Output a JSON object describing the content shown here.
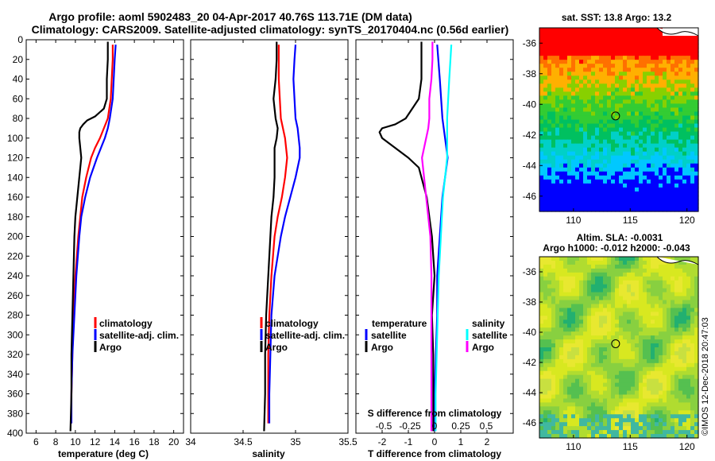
{
  "header": {
    "line1": "Argo profile: aoml 5902483_20 04-Apr-2017 40.76S 113.71E (DM data)",
    "line2": "Climatology: CARS2009. Satellite-adjusted climatology: synTS_20170404.nc (0.56d earlier)"
  },
  "chart_data": [
    {
      "id": "temperature",
      "type": "line",
      "xlabel": "temperature (deg C)",
      "ylabel": "",
      "xlim": [
        5,
        21
      ],
      "ylim": [
        400,
        0
      ],
      "xticks": [
        6,
        8,
        10,
        12,
        14,
        16,
        18,
        20
      ],
      "yticks": [
        0,
        20,
        40,
        60,
        80,
        100,
        120,
        140,
        160,
        180,
        200,
        220,
        240,
        260,
        280,
        300,
        320,
        340,
        360,
        380,
        400
      ],
      "legend": [
        "climatology",
        "satellite-adj. clim.",
        "Argo"
      ],
      "series": [
        {
          "name": "climatology",
          "color": "#ff0000",
          "depth": [
            5,
            20,
            40,
            60,
            80,
            90,
            100,
            110,
            120,
            140,
            160,
            180,
            200,
            240,
            280,
            320,
            360,
            390
          ],
          "values": [
            13.8,
            13.8,
            13.7,
            13.6,
            13.3,
            12.9,
            12.5,
            12.0,
            11.6,
            11.1,
            10.7,
            10.5,
            10.3,
            10.0,
            9.8,
            9.7,
            9.6,
            9.6
          ]
        },
        {
          "name": "satellite-adj. clim.",
          "color": "#0000ff",
          "depth": [
            5,
            20,
            40,
            60,
            80,
            90,
            100,
            110,
            120,
            140,
            160,
            180,
            200,
            240,
            280,
            320,
            360,
            390
          ],
          "values": [
            14.1,
            14.0,
            13.9,
            13.8,
            13.5,
            13.3,
            13.0,
            12.6,
            12.2,
            11.5,
            11.0,
            10.6,
            10.4,
            10.1,
            9.9,
            9.7,
            9.6,
            9.6
          ]
        },
        {
          "name": "Argo",
          "color": "#000000",
          "depth": [
            2,
            20,
            40,
            60,
            70,
            78,
            82,
            86,
            90,
            94,
            100,
            110,
            120,
            140,
            160,
            180,
            200,
            240,
            280,
            320,
            360,
            398
          ],
          "values": [
            13.3,
            13.3,
            13.2,
            13.2,
            12.9,
            12.0,
            11.2,
            10.8,
            10.5,
            10.4,
            10.4,
            10.5,
            10.6,
            10.4,
            10.2,
            10.0,
            9.9,
            9.8,
            9.7,
            9.6,
            9.6,
            9.5
          ]
        }
      ]
    },
    {
      "id": "salinity",
      "type": "line",
      "xlabel": "salinity",
      "ylabel": "",
      "xlim": [
        34,
        35.5
      ],
      "ylim": [
        400,
        0
      ],
      "xticks": [
        34,
        34.5,
        35,
        35.5
      ],
      "yticks": [],
      "legend": [
        "climatology",
        "satellite-adj. clim.",
        "Argo"
      ],
      "series": [
        {
          "name": "climatology",
          "color": "#ff0000",
          "depth": [
            5,
            40,
            80,
            100,
            120,
            140,
            160,
            180,
            200,
            240,
            280,
            320,
            360,
            390
          ],
          "values": [
            34.84,
            34.84,
            34.86,
            34.9,
            34.92,
            34.9,
            34.87,
            34.83,
            34.8,
            34.77,
            34.75,
            34.74,
            34.74,
            34.74
          ]
        },
        {
          "name": "satellite-adj. clim.",
          "color": "#0000ff",
          "depth": [
            5,
            20,
            40,
            60,
            80,
            90,
            100,
            110,
            120,
            140,
            160,
            180,
            200,
            240,
            280,
            320,
            360,
            390
          ],
          "values": [
            35.0,
            34.99,
            34.98,
            34.99,
            35.0,
            35.02,
            35.03,
            35.04,
            35.04,
            35.0,
            34.95,
            34.9,
            34.86,
            34.8,
            34.77,
            34.76,
            34.75,
            34.75
          ]
        },
        {
          "name": "Argo",
          "color": "#000000",
          "depth": [
            2,
            20,
            40,
            60,
            80,
            90,
            100,
            110,
            120,
            140,
            160,
            180,
            200,
            240,
            280,
            320,
            360,
            398
          ],
          "values": [
            34.82,
            34.82,
            34.81,
            34.79,
            34.81,
            34.83,
            34.82,
            34.8,
            34.8,
            34.8,
            34.79,
            34.77,
            34.76,
            34.74,
            34.72,
            34.71,
            34.71,
            34.7
          ]
        }
      ]
    },
    {
      "id": "difference",
      "type": "line",
      "xlabel": "T difference from climatology",
      "ylabel": "",
      "xlim": [
        -3,
        3
      ],
      "ylim": [
        400,
        0
      ],
      "xticks": [
        -2,
        -1,
        0,
        1,
        2
      ],
      "secondary_xlabel": "S difference from climatology",
      "secondary_xticks": [
        "-0.5",
        "-0.25",
        "0",
        "0.25",
        "0.5"
      ],
      "legend_left_title": "temperature",
      "legend_left": [
        "satellite",
        "Argo"
      ],
      "legend_right_title": "salinity",
      "legend_right": [
        "satellite",
        "Argo"
      ],
      "series": [
        {
          "name": "temperature satellite",
          "color": "#0000ff",
          "depth": [
            5,
            40,
            80,
            100,
            120,
            160,
            200,
            240,
            280,
            320,
            360,
            398
          ],
          "values": [
            0.1,
            0.2,
            0.3,
            0.4,
            0.5,
            0.3,
            0.2,
            0.1,
            0.1,
            0.05,
            0.0,
            0.0
          ]
        },
        {
          "name": "temperature Argo",
          "color": "#000000",
          "depth": [
            2,
            40,
            60,
            80,
            86,
            90,
            94,
            100,
            110,
            120,
            130,
            140,
            160,
            180,
            200,
            240,
            280,
            320,
            360,
            398
          ],
          "values": [
            -0.5,
            -0.5,
            -0.6,
            -1.1,
            -1.5,
            -2.0,
            -2.1,
            -2.0,
            -1.5,
            -1.0,
            -0.6,
            -0.5,
            -0.3,
            -0.2,
            -0.1,
            0.0,
            -0.1,
            -0.05,
            -0.05,
            -0.05
          ]
        },
        {
          "name": "salinity satellite",
          "color": "#00ffff",
          "depth": [
            5,
            40,
            80,
            100,
            120,
            160,
            200,
            240,
            280,
            320,
            360,
            398
          ],
          "values": [
            0.16,
            0.14,
            0.12,
            0.12,
            0.12,
            0.08,
            0.06,
            0.04,
            0.03,
            0.02,
            0.01,
            0.01
          ]
        },
        {
          "name": "salinity Argo",
          "color": "#ff00ff",
          "depth": [
            2,
            20,
            40,
            60,
            80,
            90,
            100,
            110,
            120,
            140,
            160,
            180,
            200,
            240,
            280,
            320,
            360,
            398
          ],
          "values": [
            -0.02,
            -0.02,
            -0.03,
            -0.05,
            -0.05,
            -0.06,
            -0.08,
            -0.1,
            -0.12,
            -0.1,
            -0.08,
            -0.06,
            -0.04,
            -0.03,
            -0.03,
            -0.03,
            -0.03,
            -0.03
          ]
        }
      ]
    },
    {
      "id": "sst_map",
      "type": "heatmap",
      "title": "sat. SST: 13.8 Argo: 13.2",
      "xlim": [
        107,
        121
      ],
      "ylim": [
        -47,
        -35
      ],
      "xticks": [
        110,
        115,
        120
      ],
      "yticks": [
        -36,
        -38,
        -40,
        -42,
        -44,
        -46
      ],
      "marker": {
        "lon": 113.71,
        "lat": -40.76
      }
    },
    {
      "id": "sla_map",
      "type": "heatmap",
      "title": "Altim. SLA: -0.0031",
      "subtitle": "Argo h1000: -0.012 h2000: -0.043",
      "xlim": [
        107,
        121
      ],
      "ylim": [
        -47,
        -35
      ],
      "xticks": [
        110,
        115,
        120
      ],
      "yticks": [
        -36,
        -38,
        -40,
        -42,
        -44,
        -46
      ],
      "marker": {
        "lon": 113.71,
        "lat": -40.76
      }
    }
  ],
  "stamp": "©IMOS 12-Dec-2018 20:47:03",
  "colors": {
    "climatology": "#ff0000",
    "satellite": "#0000ff",
    "argo": "#000000",
    "sat_salinity": "#00ffff",
    "argo_salinity": "#ff00ff"
  }
}
